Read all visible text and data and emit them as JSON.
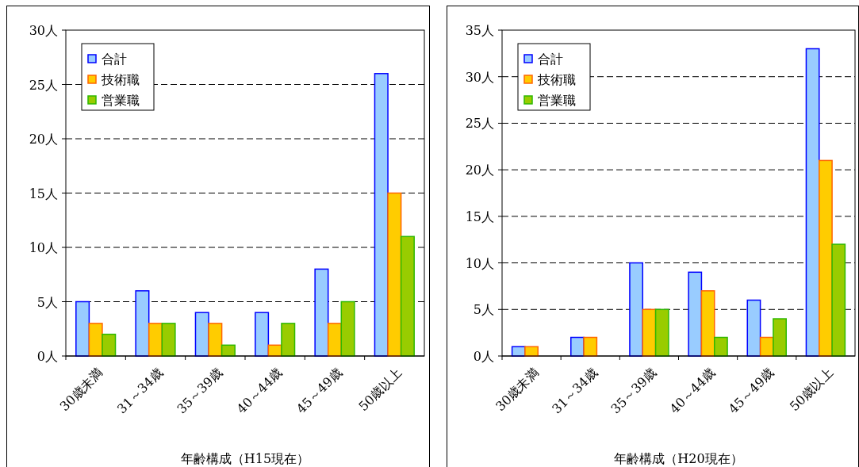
{
  "chart_data": [
    {
      "type": "bar",
      "xlabel": "年齢構成（H15現在）",
      "categories": [
        "30歳未満",
        "31～34歳",
        "35～39歳",
        "40～44歳",
        "45～49歳",
        "50歳以上"
      ],
      "series": [
        {
          "name": "合計",
          "color": "#99ccff",
          "values": [
            5,
            6,
            4,
            4,
            8,
            26
          ]
        },
        {
          "name": "技術職",
          "color": "#ffcc00",
          "values": [
            3,
            3,
            3,
            1,
            3,
            15
          ]
        },
        {
          "name": "営業職",
          "color": "#99cc00",
          "values": [
            2,
            3,
            1,
            3,
            5,
            11
          ]
        }
      ],
      "ylim": [
        0,
        30
      ],
      "yticks": [
        {
          "value": 0,
          "label": "0人"
        },
        {
          "value": 5,
          "label": "5人"
        },
        {
          "value": 10,
          "label": "10人"
        },
        {
          "value": 15,
          "label": "15人"
        },
        {
          "value": 20,
          "label": "20人"
        },
        {
          "value": 25,
          "label": "25人"
        },
        {
          "value": 30,
          "label": "30人"
        }
      ],
      "grid": "y",
      "legend": "top left"
    },
    {
      "type": "bar",
      "xlabel": "年齢構成（H20現在）",
      "categories": [
        "30歳未満",
        "31～34歳",
        "35～39歳",
        "40～44歳",
        "45～49歳",
        "50歳以上"
      ],
      "series": [
        {
          "name": "合計",
          "color": "#99ccff",
          "values": [
            1,
            2,
            10,
            9,
            6,
            33
          ]
        },
        {
          "name": "技術職",
          "color": "#ffcc00",
          "values": [
            1,
            2,
            5,
            7,
            2,
            21
          ]
        },
        {
          "name": "営業職",
          "color": "#99cc00",
          "values": [
            0,
            0,
            5,
            2,
            4,
            12
          ]
        }
      ],
      "ylim": [
        0,
        35
      ],
      "yticks": [
        {
          "value": 0,
          "label": "0人"
        },
        {
          "value": 5,
          "label": "5人"
        },
        {
          "value": 10,
          "label": "10人"
        },
        {
          "value": 15,
          "label": "15人"
        },
        {
          "value": 20,
          "label": "20人"
        },
        {
          "value": 25,
          "label": "25人"
        },
        {
          "value": 30,
          "label": "30人"
        },
        {
          "value": 35,
          "label": "35人"
        }
      ],
      "grid": "y",
      "legend": "top left"
    }
  ]
}
